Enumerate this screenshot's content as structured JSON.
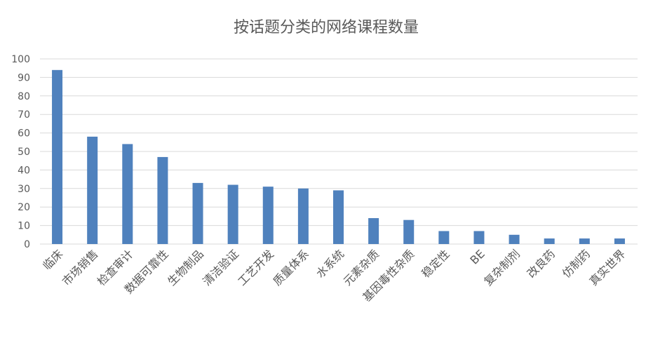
{
  "chart_data": {
    "type": "bar",
    "title": "按话题分类的网络课程数量",
    "categories": [
      "临床",
      "市场销售",
      "检查审计",
      "数据可靠性",
      "生物制品",
      "清洁验证",
      "工艺开发",
      "质量体系",
      "水系统",
      "元素杂质",
      "基因毒性杂质",
      "稳定性",
      "BE",
      "复杂制剂",
      "改良药",
      "仿制药",
      "真实世界"
    ],
    "values": [
      94,
      58,
      54,
      47,
      33,
      32,
      31,
      30,
      29,
      14,
      13,
      7,
      7,
      5,
      3,
      3,
      3
    ],
    "ylim": [
      0,
      100
    ],
    "yticks": [
      0,
      10,
      20,
      30,
      40,
      50,
      60,
      70,
      80,
      90,
      100
    ],
    "grid": true,
    "bar_color": "#4f81bd",
    "grid_color": "#d9d9d9",
    "text_color": "#595959"
  }
}
